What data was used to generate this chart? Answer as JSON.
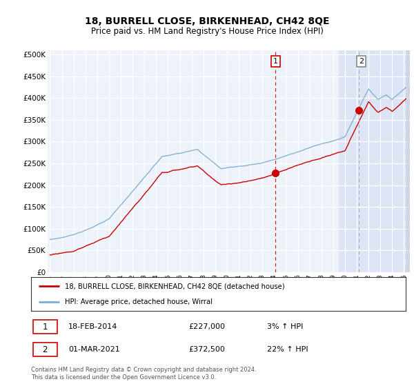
{
  "title": "18, BURRELL CLOSE, BIRKENHEAD, CH42 8QE",
  "subtitle": "Price paid vs. HM Land Registry's House Price Index (HPI)",
  "ylabel_ticks": [
    "£0",
    "£50K",
    "£100K",
    "£150K",
    "£200K",
    "£250K",
    "£300K",
    "£350K",
    "£400K",
    "£450K",
    "£500K"
  ],
  "ytick_vals": [
    0,
    50000,
    100000,
    150000,
    200000,
    250000,
    300000,
    350000,
    400000,
    450000,
    500000
  ],
  "ylim": [
    0,
    510000
  ],
  "xlim_start": 1994.8,
  "xlim_end": 2025.5,
  "hpi_color": "#7aadd4",
  "price_color": "#cc0000",
  "sale1_date": 2014.12,
  "sale1_price": 227000,
  "sale2_date": 2021.16,
  "sale2_price": 372500,
  "annotation1_label": "1",
  "annotation2_label": "2",
  "legend_entry1": "18, BURRELL CLOSE, BIRKENHEAD, CH42 8QE (detached house)",
  "legend_entry2": "HPI: Average price, detached house, Wirral",
  "table_row1_num": "1",
  "table_row1_date": "18-FEB-2014",
  "table_row1_price": "£227,000",
  "table_row1_hpi": "3% ↑ HPI",
  "table_row2_num": "2",
  "table_row2_date": "01-MAR-2021",
  "table_row2_price": "£372,500",
  "table_row2_hpi": "22% ↑ HPI",
  "footer": "Contains HM Land Registry data © Crown copyright and database right 2024.\nThis data is licensed under the Open Government Licence v3.0.",
  "background_color": "#ffffff",
  "plot_bg_color": "#eef2fa",
  "shaded_region_start": 2019.5,
  "shaded_region_color": "#dde4f5",
  "hatch_region_start": 2025.17
}
